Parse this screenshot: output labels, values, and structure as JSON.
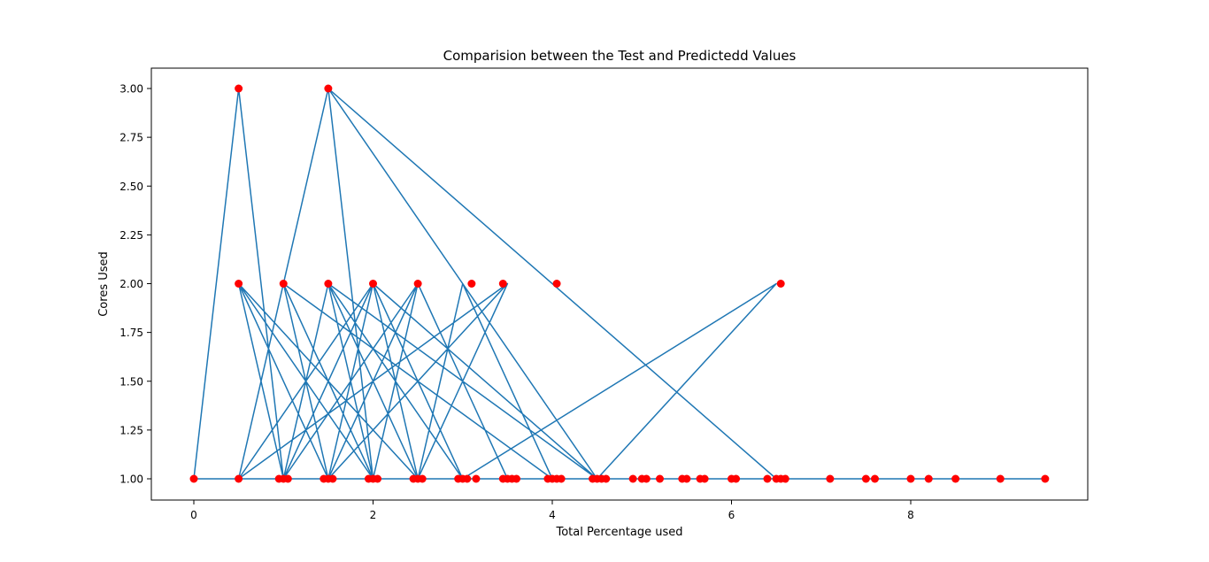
{
  "chart_data": {
    "type": "scatter",
    "title": "Comparision between the Test and Predictedd Values",
    "xlabel": "Total Percentage used",
    "ylabel": "Cores Used",
    "xlim": [
      -0.47,
      24.5
    ],
    "ylim": [
      0.9,
      3.1
    ],
    "xticks": [
      0,
      2,
      4,
      6,
      8
    ],
    "xtick_labels": [
      "0",
      "2",
      "4",
      "6",
      "8"
    ],
    "yticks": [
      1.0,
      1.25,
      1.5,
      1.75,
      2.0,
      2.25,
      2.5,
      2.75,
      3.0
    ],
    "ytick_labels": [
      "1.00",
      "1.25",
      "1.50",
      "1.75",
      "2.00",
      "2.25",
      "2.50",
      "2.75",
      "3.00"
    ],
    "grid": false,
    "series": [
      {
        "role": "line",
        "color": "#1f77b4",
        "x": [
          0,
          0.5,
          1.0,
          0.5,
          1.5,
          1.0,
          2.0,
          1.5,
          2.5,
          2.0,
          0.5,
          1.0,
          1.5,
          2.0,
          2.5,
          3.5,
          2.5,
          3.0,
          4.0,
          1.0,
          0.5,
          1.5,
          2.0,
          1.0,
          1.5,
          3.5,
          0.5,
          1.0,
          2.0,
          2.5,
          1.5,
          3.0,
          6.5,
          4.5,
          1.5,
          1.0,
          2.0,
          2.5,
          0.5,
          1.0,
          3.5,
          2.5,
          1.5,
          2.0,
          0.5,
          1.0,
          1.5,
          2.5,
          1.0,
          0.5,
          6.5,
          1.5,
          4.5,
          2.0,
          3.0,
          1.5,
          1.0,
          2.0,
          0.5,
          1.5,
          2.0,
          2.5,
          1.0,
          2.0,
          0.5,
          1.0,
          1.5,
          2.5,
          3.5,
          2.5,
          3.5,
          4.0,
          4.5,
          5.0,
          5.5,
          6.0,
          6.5,
          7.0,
          7.5,
          8.0,
          8.5,
          9.0,
          9.5,
          8.0,
          7.5,
          6.5,
          6.0,
          5.5,
          5.0,
          4.5,
          4.0,
          3.5,
          3.0,
          2.5,
          2.0,
          1.5,
          1.0,
          0.5,
          0.0
        ],
        "y": [
          1.0,
          3.0,
          1.0,
          2.0,
          1.0,
          2.0,
          1.0,
          2.0,
          1.0,
          2.0,
          1.0,
          2.0,
          1.0,
          2.0,
          1.0,
          2.0,
          1.0,
          2.0,
          1.0,
          2.0,
          1.0,
          3.0,
          1.0,
          2.0,
          1.0,
          2.0,
          1.0,
          2.0,
          1.0,
          2.0,
          1.0,
          1.0,
          2.0,
          1.0,
          2.0,
          1.0,
          2.0,
          1.0,
          2.0,
          1.0,
          1.0,
          2.0,
          1.0,
          2.0,
          1.0,
          2.0,
          1.0,
          2.0,
          1.0,
          1.0,
          1.0,
          3.0,
          1.0,
          2.0,
          1.0,
          2.0,
          1.0,
          1.0,
          2.0,
          1.0,
          1.0,
          2.0,
          1.0,
          2.0,
          1.0,
          2.0,
          1.0,
          1.0,
          1.0,
          2.0,
          1.0,
          1.0,
          1.0,
          1.0,
          1.0,
          1.0,
          1.0,
          1.0,
          1.0,
          1.0,
          1.0,
          1.0,
          1.0,
          1.0,
          1.0,
          1.0,
          1.0,
          1.0,
          1.0,
          1.0,
          1.0,
          1.0,
          1.0,
          1.0,
          1.0,
          1.0,
          1.0,
          1.0,
          1.0
        ]
      },
      {
        "role": "points",
        "color": "#ff0000",
        "points": [
          [
            0.0,
            1.0
          ],
          [
            0.5,
            1.0
          ],
          [
            0.95,
            1.0
          ],
          [
            1.0,
            1.0
          ],
          [
            1.05,
            1.0
          ],
          [
            1.45,
            1.0
          ],
          [
            1.5,
            1.0
          ],
          [
            1.55,
            1.0
          ],
          [
            1.95,
            1.0
          ],
          [
            2.0,
            1.0
          ],
          [
            2.05,
            1.0
          ],
          [
            2.45,
            1.0
          ],
          [
            2.5,
            1.0
          ],
          [
            2.55,
            1.0
          ],
          [
            2.95,
            1.0
          ],
          [
            3.0,
            1.0
          ],
          [
            3.05,
            1.0
          ],
          [
            3.15,
            1.0
          ],
          [
            3.45,
            1.0
          ],
          [
            3.5,
            1.0
          ],
          [
            3.55,
            1.0
          ],
          [
            3.6,
            1.0
          ],
          [
            3.95,
            1.0
          ],
          [
            4.0,
            1.0
          ],
          [
            4.05,
            1.0
          ],
          [
            4.1,
            1.0
          ],
          [
            4.45,
            1.0
          ],
          [
            4.5,
            1.0
          ],
          [
            4.55,
            1.0
          ],
          [
            4.6,
            1.0
          ],
          [
            4.9,
            1.0
          ],
          [
            5.0,
            1.0
          ],
          [
            5.05,
            1.0
          ],
          [
            5.2,
            1.0
          ],
          [
            5.45,
            1.0
          ],
          [
            5.5,
            1.0
          ],
          [
            5.65,
            1.0
          ],
          [
            5.7,
            1.0
          ],
          [
            6.0,
            1.0
          ],
          [
            6.05,
            1.0
          ],
          [
            6.4,
            1.0
          ],
          [
            6.5,
            1.0
          ],
          [
            6.55,
            1.0
          ],
          [
            6.6,
            1.0
          ],
          [
            7.1,
            1.0
          ],
          [
            7.5,
            1.0
          ],
          [
            7.6,
            1.0
          ],
          [
            8.0,
            1.0
          ],
          [
            8.2,
            1.0
          ],
          [
            8.5,
            1.0
          ],
          [
            9.0,
            1.0
          ],
          [
            9.5,
            1.0
          ],
          [
            0.5,
            2.0
          ],
          [
            1.0,
            2.0
          ],
          [
            1.5,
            2.0
          ],
          [
            2.0,
            2.0
          ],
          [
            2.5,
            2.0
          ],
          [
            3.1,
            2.0
          ],
          [
            3.45,
            2.0
          ],
          [
            4.05,
            2.0
          ],
          [
            6.55,
            2.0
          ],
          [
            0.5,
            3.0
          ],
          [
            1.5,
            3.0
          ]
        ]
      }
    ]
  }
}
